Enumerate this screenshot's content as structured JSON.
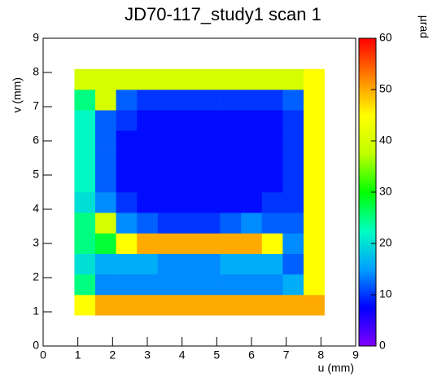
{
  "chart_data": {
    "type": "heatmap",
    "title": "JD70-117_study1 scan 1",
    "xlabel": "u (mm)",
    "ylabel": "v (mm)",
    "colorbar_label": "µrad",
    "xlim": [
      0,
      9
    ],
    "ylim": [
      0,
      9
    ],
    "zlim": [
      0,
      60
    ],
    "xticks": [
      0,
      1,
      2,
      3,
      4,
      5,
      6,
      7,
      8,
      9
    ],
    "yticks": [
      0,
      1,
      2,
      3,
      4,
      5,
      6,
      7,
      8,
      9
    ],
    "zticks": [
      0,
      10,
      20,
      30,
      40,
      50,
      60
    ],
    "colorscale": [
      "#8000ff",
      "#0000ff",
      "#00a0ff",
      "#00ffc0",
      "#00ff00",
      "#c0ff00",
      "#ffff00",
      "#ff8000",
      "#ff0000"
    ],
    "xbins": [
      0.9,
      1.5,
      2.1,
      2.7,
      3.3,
      3.9,
      4.5,
      5.1,
      5.7,
      6.3,
      6.9,
      7.5,
      8.1
    ],
    "ybins": [
      0.9,
      1.5,
      2.1,
      2.7,
      3.3,
      3.9,
      4.5,
      5.1,
      5.7,
      6.3,
      6.9,
      7.5,
      8.1
    ],
    "z": [
      [
        45,
        50,
        50,
        50,
        50,
        50,
        50,
        50,
        50,
        50,
        50,
        50
      ],
      [
        25,
        14,
        14,
        14,
        14,
        14,
        14,
        14,
        14,
        14,
        16,
        45
      ],
      [
        20,
        16,
        16,
        16,
        14,
        14,
        14,
        16,
        16,
        16,
        12,
        45
      ],
      [
        25,
        28,
        45,
        50,
        50,
        50,
        50,
        50,
        50,
        45,
        14,
        45
      ],
      [
        25,
        40,
        14,
        12,
        10,
        10,
        10,
        12,
        14,
        12,
        12,
        45
      ],
      [
        20,
        14,
        10,
        8,
        8,
        8,
        8,
        8,
        8,
        10,
        10,
        45
      ],
      [
        22,
        12,
        8,
        8,
        8,
        8,
        8,
        8,
        8,
        8,
        10,
        45
      ],
      [
        22,
        12,
        8,
        8,
        8,
        8,
        8,
        8,
        8,
        8,
        10,
        45
      ],
      [
        22,
        12,
        8,
        8,
        8,
        8,
        8,
        8,
        8,
        8,
        10,
        45
      ],
      [
        22,
        12,
        10,
        8,
        8,
        8,
        8,
        8,
        8,
        8,
        10,
        45
      ],
      [
        25,
        40,
        12,
        10,
        10,
        10,
        10,
        10,
        10,
        10,
        12,
        45
      ],
      [
        40,
        40,
        40,
        40,
        40,
        40,
        40,
        40,
        40,
        40,
        40,
        45
      ]
    ]
  }
}
